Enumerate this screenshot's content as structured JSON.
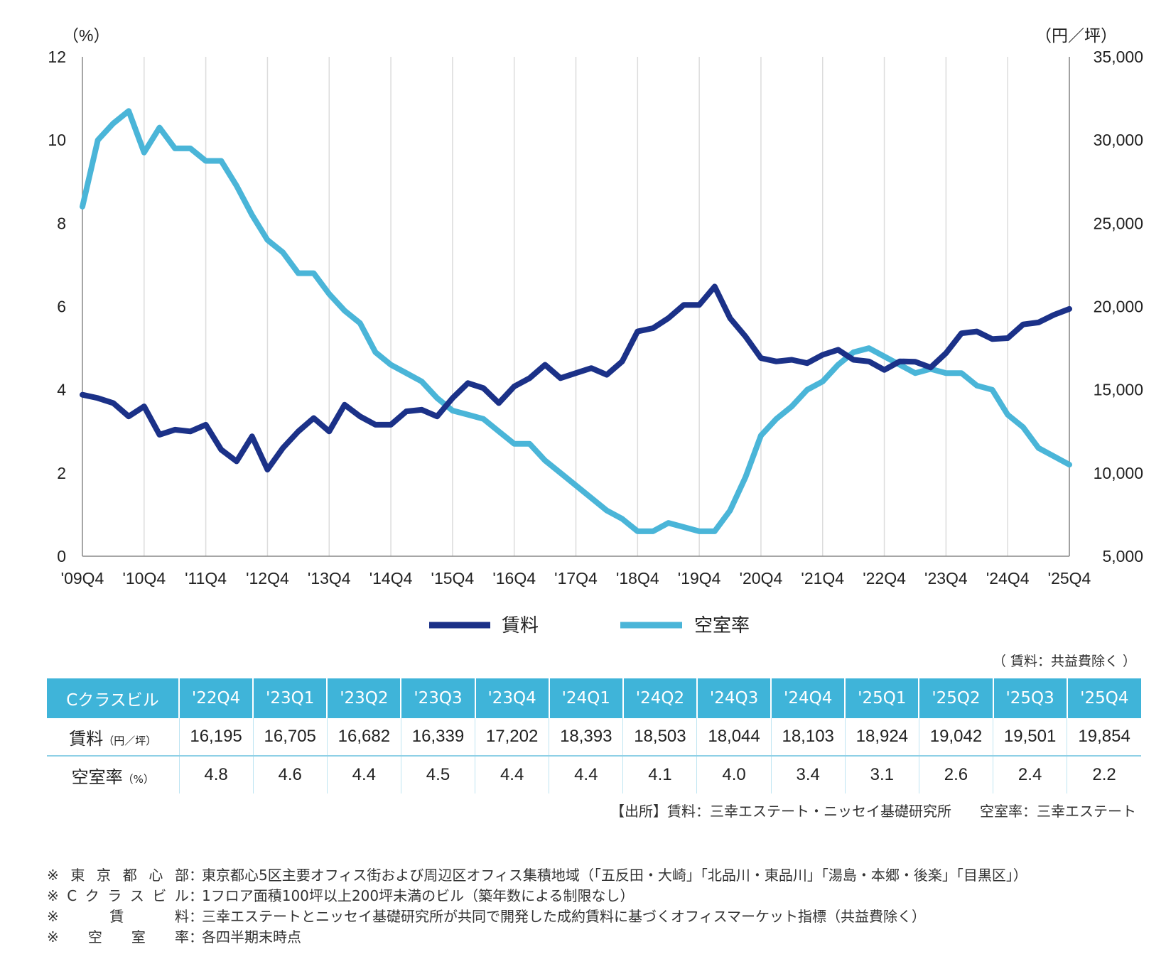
{
  "chart_data": {
    "type": "line",
    "left_axis_title": "（%）",
    "right_axis_title": "（円／坪）",
    "left_ylim": [
      0,
      12
    ],
    "right_ylim": [
      5000,
      35000
    ],
    "left_ticks": [
      "0",
      "2",
      "4",
      "6",
      "8",
      "10",
      "12"
    ],
    "right_ticks": [
      "5,000",
      "10,000",
      "15,000",
      "20,000",
      "25,000",
      "30,000",
      "35,000"
    ],
    "x_tick_labels": [
      "'09Q4",
      "'10Q4",
      "'11Q4",
      "'12Q4",
      "'13Q4",
      "'14Q4",
      "'15Q4",
      "'16Q4",
      "'17Q4",
      "'18Q4",
      "'19Q4",
      "'20Q4",
      "'21Q4",
      "'22Q4",
      "'23Q4",
      "'24Q4",
      "'25Q4"
    ],
    "grid": "vertical",
    "legend_position": "bottom-center",
    "series": [
      {
        "name": "賃料",
        "axis": "right",
        "color": "#1b3188",
        "values": [
          14700,
          14500,
          14200,
          13400,
          14000,
          12300,
          12600,
          12500,
          12900,
          11400,
          10700,
          12200,
          10200,
          11500,
          12500,
          13300,
          12500,
          14100,
          13400,
          12900,
          12900,
          13700,
          13800,
          13400,
          14500,
          15400,
          15100,
          14200,
          15200,
          15700,
          16500,
          15700,
          16000,
          16300,
          15900,
          16700,
          18500,
          18700,
          19300,
          20100,
          20100,
          21200,
          19300,
          18200,
          16900,
          16700,
          16800,
          16600,
          17100,
          17400,
          16800,
          16700,
          16195,
          16705,
          16682,
          16339,
          17202,
          18393,
          18503,
          18044,
          18103,
          18924,
          19042,
          19501,
          19854
        ]
      },
      {
        "name": "空室率",
        "axis": "left",
        "color": "#4ab5d8",
        "values": [
          8.4,
          10.0,
          10.4,
          10.7,
          9.7,
          10.3,
          9.8,
          9.8,
          9.5,
          9.5,
          8.9,
          8.2,
          7.6,
          7.3,
          6.8,
          6.8,
          6.3,
          5.9,
          5.6,
          4.9,
          4.6,
          4.4,
          4.2,
          3.8,
          3.5,
          3.4,
          3.3,
          3.0,
          2.7,
          2.7,
          2.3,
          2.0,
          1.7,
          1.4,
          1.1,
          0.9,
          0.6,
          0.6,
          0.8,
          0.7,
          0.6,
          0.6,
          1.1,
          1.9,
          2.9,
          3.3,
          3.6,
          4.0,
          4.2,
          4.6,
          4.9,
          5.0,
          4.8,
          4.6,
          4.4,
          4.5,
          4.4,
          4.4,
          4.1,
          4.0,
          3.4,
          3.1,
          2.6,
          2.4,
          2.2
        ]
      }
    ]
  },
  "note_top": "（ 賃料：共益費除く ）",
  "table": {
    "header_first": "Cクラスビル",
    "columns": [
      "'22Q4",
      "'23Q1",
      "'23Q2",
      "'23Q3",
      "'23Q4",
      "'24Q1",
      "'24Q2",
      "'24Q3",
      "'24Q4",
      "'25Q1",
      "'25Q2",
      "'25Q3",
      "'25Q4"
    ],
    "rent_label": "賃料",
    "rent_unit": "（円／坪）",
    "rent_values": [
      "16,195",
      "16,705",
      "16,682",
      "16,339",
      "17,202",
      "18,393",
      "18,503",
      "18,044",
      "18,103",
      "18,924",
      "19,042",
      "19,501",
      "19,854"
    ],
    "vacancy_label": "空室率",
    "vacancy_unit": "（%）",
    "vacancy_values": [
      "4.8",
      "4.6",
      "4.4",
      "4.5",
      "4.4",
      "4.4",
      "4.1",
      "4.0",
      "3.4",
      "3.1",
      "2.6",
      "2.4",
      "2.2"
    ]
  },
  "source": "【出所】賃料：三幸エステート・ニッセイ基礎研究所　　空室率：三幸エステート",
  "footnotes": [
    {
      "label": "※東京都心部",
      "text": "東京都心5区主要オフィス街および周辺区オフィス集積地域（「五反田・大崎」「北品川・東品川」「湯島・本郷・後楽」「目黒区」）"
    },
    {
      "label": "※Cクラスビル",
      "text": " 1フロア面積100坪以上200坪未満のビル（築年数による制限なし）"
    },
    {
      "label": "※賃料",
      "text": "三幸エステートとニッセイ基礎研究所が共同で開発した成約賃料に基づくオフィスマーケット指標（共益費除く）"
    },
    {
      "label": "※空室率",
      "text": "各四半期末時点"
    }
  ]
}
